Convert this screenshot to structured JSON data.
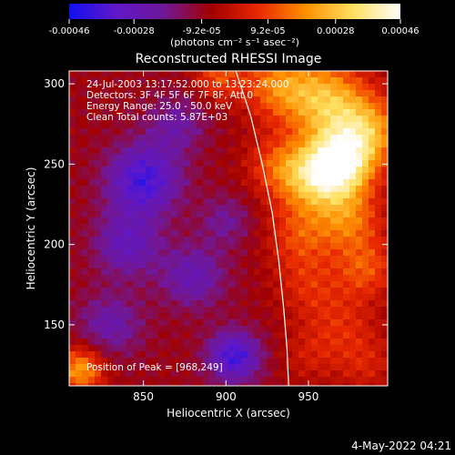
{
  "chart_data": {
    "type": "heatmap",
    "title": "Reconstructed RHESSI Image",
    "xlabel": "Heliocentric X (arcsec)",
    "ylabel": "Heliocentric Y (arcsec)",
    "xlim": [
      805,
      998
    ],
    "ylim": [
      112,
      308
    ],
    "x_ticks": [
      850,
      900,
      950
    ],
    "y_ticks": [
      150,
      200,
      250,
      300
    ],
    "colorbar": {
      "label": "(photons cm⁻² s⁻¹ asec⁻²)",
      "range": [
        -0.00046,
        0.00046
      ],
      "ticks": [
        "-0.00046",
        "-0.00028",
        "-9.2e-05",
        "9.2e-05",
        "0.00028",
        "0.00046"
      ],
      "colors": [
        "#1010f0",
        "#6018c8",
        "#701898",
        "#a00000",
        "#e82800",
        "#ff9000",
        "#ffe060",
        "#ffffff"
      ]
    },
    "annotations": [
      "24-Jul-2003 13:17:52.000 to 13:23:24.000",
      "Detectors: 3F 4F 5F 6F 7F 8F, Att 0",
      "Energy Range: 25.0 - 50.0 keV",
      "Clean    Total counts: 5.87E+03"
    ],
    "peak_label": "Position of Peak = [968,249]",
    "peak": [
      968,
      249
    ],
    "limb_curve": [
      [
        906,
        308
      ],
      [
        915,
        280
      ],
      [
        922,
        250
      ],
      [
        928,
        220
      ],
      [
        932,
        190
      ],
      [
        935,
        160
      ],
      [
        937,
        135
      ],
      [
        938,
        112
      ]
    ],
    "blobs": [
      {
        "x": 930,
        "y": 300,
        "v": 0.00022,
        "s": 22
      },
      {
        "x": 960,
        "y": 290,
        "v": 0.00032,
        "s": 25
      },
      {
        "x": 968,
        "y": 249,
        "v": 0.00046,
        "s": 20
      },
      {
        "x": 985,
        "y": 270,
        "v": 0.0003,
        "s": 22
      },
      {
        "x": 950,
        "y": 240,
        "v": 0.00026,
        "s": 22
      },
      {
        "x": 930,
        "y": 250,
        "v": 0.00014,
        "s": 18
      },
      {
        "x": 975,
        "y": 215,
        "v": 0.00022,
        "s": 20
      },
      {
        "x": 945,
        "y": 205,
        "v": 0.00016,
        "s": 20
      },
      {
        "x": 985,
        "y": 185,
        "v": 0.00018,
        "s": 18
      },
      {
        "x": 950,
        "y": 175,
        "v": 0.00012,
        "s": 20
      },
      {
        "x": 970,
        "y": 150,
        "v": 0.00012,
        "s": 22
      },
      {
        "x": 985,
        "y": 125,
        "v": 0.0001,
        "s": 18
      },
      {
        "x": 950,
        "y": 130,
        "v": 8e-05,
        "s": 18
      },
      {
        "x": 895,
        "y": 305,
        "v": 0.00018,
        "s": 14
      },
      {
        "x": 812,
        "y": 122,
        "v": 0.0003,
        "s": 14
      },
      {
        "x": 850,
        "y": 240,
        "v": -0.0003,
        "s": 22
      },
      {
        "x": 840,
        "y": 200,
        "v": -0.0002,
        "s": 20
      },
      {
        "x": 880,
        "y": 180,
        "v": -0.00018,
        "s": 20
      },
      {
        "x": 905,
        "y": 130,
        "v": -0.0003,
        "s": 16
      },
      {
        "x": 830,
        "y": 150,
        "v": -0.00016,
        "s": 20
      },
      {
        "x": 870,
        "y": 275,
        "v": -0.00014,
        "s": 18
      },
      {
        "x": 900,
        "y": 215,
        "v": -0.00012,
        "s": 16
      }
    ]
  },
  "footer": {
    "date": "4-May-2022 04:21"
  }
}
